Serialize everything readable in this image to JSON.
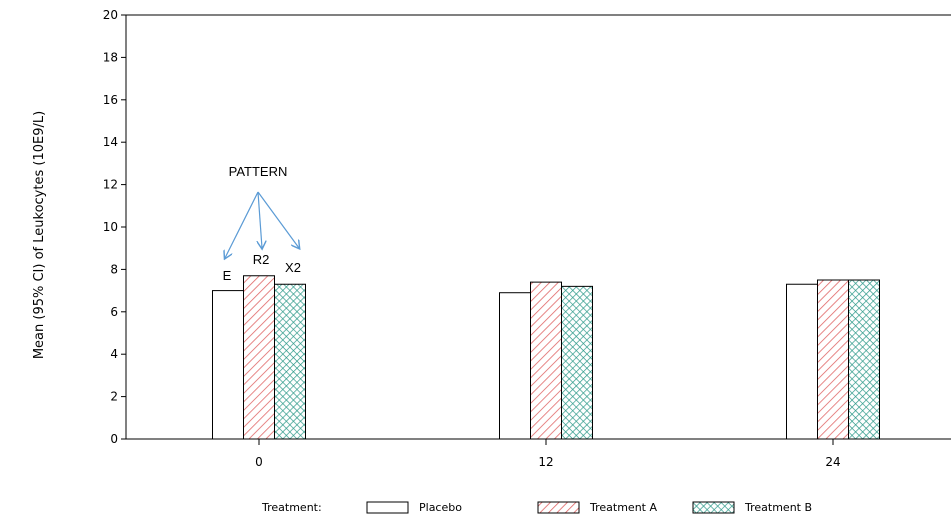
{
  "chart_data": {
    "type": "bar",
    "categories": [
      "0",
      "12",
      "24"
    ],
    "series": [
      {
        "name": "Placebo",
        "values": [
          7.0,
          6.9,
          7.3
        ],
        "pattern": "E",
        "color": "#ffffff"
      },
      {
        "name": "Treatment A",
        "values": [
          7.7,
          7.4,
          7.5
        ],
        "pattern": "R2",
        "color": "#e06666"
      },
      {
        "name": "Treatment B",
        "values": [
          7.3,
          7.2,
          7.5
        ],
        "pattern": "X2",
        "color": "#2e9a8a"
      }
    ],
    "ylabel": "Mean (95% CI) of Leukocytes (10E9/L)",
    "xlabel": "",
    "ylim": [
      0,
      20
    ],
    "yticks": [
      "0",
      "2",
      "4",
      "6",
      "8",
      "10",
      "12",
      "14",
      "16",
      "18",
      "20"
    ],
    "legend": {
      "title": "Treatment:",
      "position": "bottom"
    },
    "annotation": {
      "title": "PATTERN",
      "labels": [
        "E",
        "R2",
        "X2"
      ],
      "arrow_color": "#5b9bd5"
    }
  }
}
